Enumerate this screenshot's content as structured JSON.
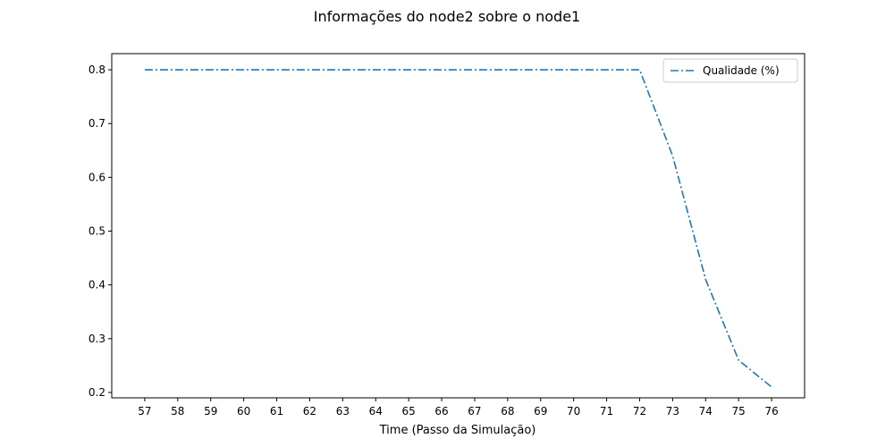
{
  "chart_data": {
    "type": "line",
    "title": "Informações do node2 sobre o node1",
    "xlabel": "Time (Passo da Simulação)",
    "ylabel": "",
    "x": [
      57,
      58,
      59,
      60,
      61,
      62,
      63,
      64,
      65,
      66,
      67,
      68,
      69,
      70,
      71,
      72,
      73,
      74,
      75,
      76
    ],
    "xticks": [
      "57",
      "58",
      "59",
      "60",
      "61",
      "62",
      "63",
      "64",
      "65",
      "66",
      "67",
      "68",
      "69",
      "70",
      "71",
      "72",
      "73",
      "74",
      "75",
      "76"
    ],
    "yticks": [
      "0.2",
      "0.3",
      "0.4",
      "0.5",
      "0.6",
      "0.7",
      "0.8"
    ],
    "ytick_values": [
      0.2,
      0.3,
      0.4,
      0.5,
      0.6,
      0.7,
      0.8
    ],
    "xlim": [
      56,
      77
    ],
    "ylim": [
      0.19,
      0.83
    ],
    "grid": false,
    "legend_position": "top-right",
    "series": [
      {
        "name": "Qualidade (%)",
        "color": "#1f77b4",
        "line_style": "dash-dot",
        "values": [
          0.8,
          0.8,
          0.8,
          0.8,
          0.8,
          0.8,
          0.8,
          0.8,
          0.8,
          0.8,
          0.8,
          0.8,
          0.8,
          0.8,
          0.8,
          0.8,
          0.64,
          0.41,
          0.26,
          0.21
        ]
      }
    ]
  }
}
